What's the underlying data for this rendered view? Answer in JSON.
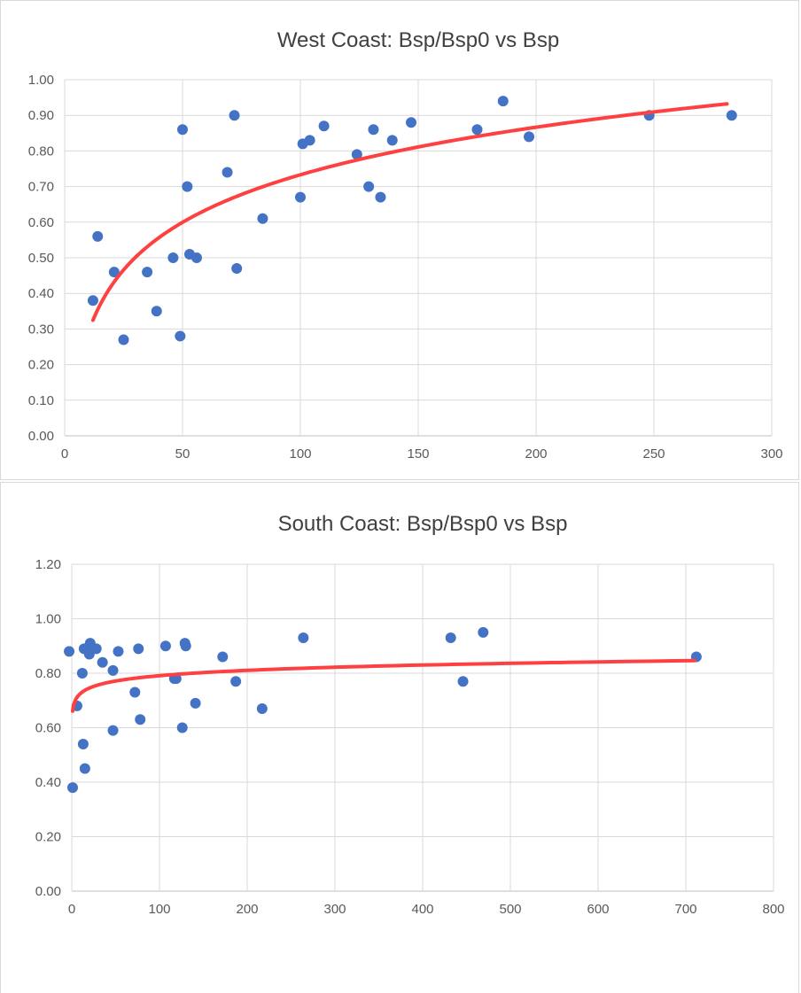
{
  "colors": {
    "point": "#4472c4",
    "trendline": "#ff4040",
    "grid": "#d9d9d9"
  },
  "chart_data": [
    {
      "type": "scatter",
      "title": "West Coast: Bsp/Bsp0 vs Bsp",
      "xlabel": "",
      "ylabel": "",
      "xlim": [
        0,
        300
      ],
      "ylim": [
        0,
        1.0
      ],
      "xticks": [
        "0",
        "50",
        "100",
        "150",
        "200",
        "250",
        "300"
      ],
      "yticks": [
        "0.00",
        "0.10",
        "0.20",
        "0.30",
        "0.40",
        "0.50",
        "0.60",
        "0.70",
        "0.80",
        "0.90",
        "1.00"
      ],
      "grid": true,
      "legend": "none",
      "points": [
        [
          12,
          0.38
        ],
        [
          14,
          0.56
        ],
        [
          21,
          0.46
        ],
        [
          25,
          0.27
        ],
        [
          35,
          0.46
        ],
        [
          39,
          0.35
        ],
        [
          46,
          0.5
        ],
        [
          49,
          0.28
        ],
        [
          50,
          0.86
        ],
        [
          52,
          0.7
        ],
        [
          53,
          0.51
        ],
        [
          56,
          0.5
        ],
        [
          69,
          0.74
        ],
        [
          72,
          0.9
        ],
        [
          73,
          0.47
        ],
        [
          84,
          0.61
        ],
        [
          100,
          0.67
        ],
        [
          101,
          0.82
        ],
        [
          104,
          0.83
        ],
        [
          110,
          0.87
        ],
        [
          124,
          0.79
        ],
        [
          129,
          0.7
        ],
        [
          131,
          0.86
        ],
        [
          134,
          0.67
        ],
        [
          139,
          0.83
        ],
        [
          147,
          0.88
        ],
        [
          175,
          0.86
        ],
        [
          186,
          0.94
        ],
        [
          197,
          0.84
        ],
        [
          248,
          0.9
        ],
        [
          283,
          0.9
        ]
      ],
      "trendline": {
        "type": "logarithmic",
        "x_range": [
          12,
          281
        ],
        "values": [
          [
            12,
            0.32
          ],
          [
            20,
            0.42
          ],
          [
            50,
            0.61
          ],
          [
            100,
            0.74
          ],
          [
            150,
            0.81
          ],
          [
            200,
            0.86
          ],
          [
            281,
            0.93
          ]
        ]
      }
    },
    {
      "type": "scatter",
      "title": "South Coast: Bsp/Bsp0 vs Bsp",
      "xlabel": "",
      "ylabel": "",
      "xlim": [
        0,
        800
      ],
      "ylim": [
        0,
        1.2
      ],
      "xticks": [
        "0",
        "100",
        "200",
        "300",
        "400",
        "500",
        "600",
        "700",
        "800"
      ],
      "yticks": [
        "0.00",
        "0.20",
        "0.40",
        "0.60",
        "0.80",
        "1.00",
        "1.20"
      ],
      "grid": true,
      "legend": "none",
      "points": [
        [
          -3,
          0.88
        ],
        [
          1,
          0.38
        ],
        [
          6,
          0.68
        ],
        [
          12,
          0.8
        ],
        [
          13,
          0.54
        ],
        [
          14,
          0.89
        ],
        [
          15,
          0.45
        ],
        [
          20,
          0.87
        ],
        [
          21,
          0.91
        ],
        [
          24,
          0.89
        ],
        [
          28,
          0.89
        ],
        [
          35,
          0.84
        ],
        [
          47,
          0.81
        ],
        [
          47,
          0.59
        ],
        [
          53,
          0.88
        ],
        [
          72,
          0.73
        ],
        [
          76,
          0.89
        ],
        [
          78,
          0.63
        ],
        [
          107,
          0.9
        ],
        [
          117,
          0.78
        ],
        [
          119,
          0.78
        ],
        [
          126,
          0.6
        ],
        [
          129,
          0.91
        ],
        [
          130,
          0.9
        ],
        [
          141,
          0.69
        ],
        [
          172,
          0.86
        ],
        [
          187,
          0.77
        ],
        [
          217,
          0.67
        ],
        [
          264,
          0.93
        ],
        [
          432,
          0.93
        ],
        [
          446,
          0.77
        ],
        [
          469,
          0.95
        ],
        [
          712,
          0.86
        ]
      ],
      "trendline": {
        "type": "logarithmic",
        "x_range": [
          1,
          710
        ],
        "values": [
          [
            1,
            0.64
          ],
          [
            5,
            0.72
          ],
          [
            20,
            0.76
          ],
          [
            50,
            0.78
          ],
          [
            100,
            0.79
          ],
          [
            200,
            0.81
          ],
          [
            300,
            0.82
          ],
          [
            400,
            0.83
          ],
          [
            500,
            0.83
          ],
          [
            710,
            0.84
          ]
        ]
      }
    }
  ]
}
